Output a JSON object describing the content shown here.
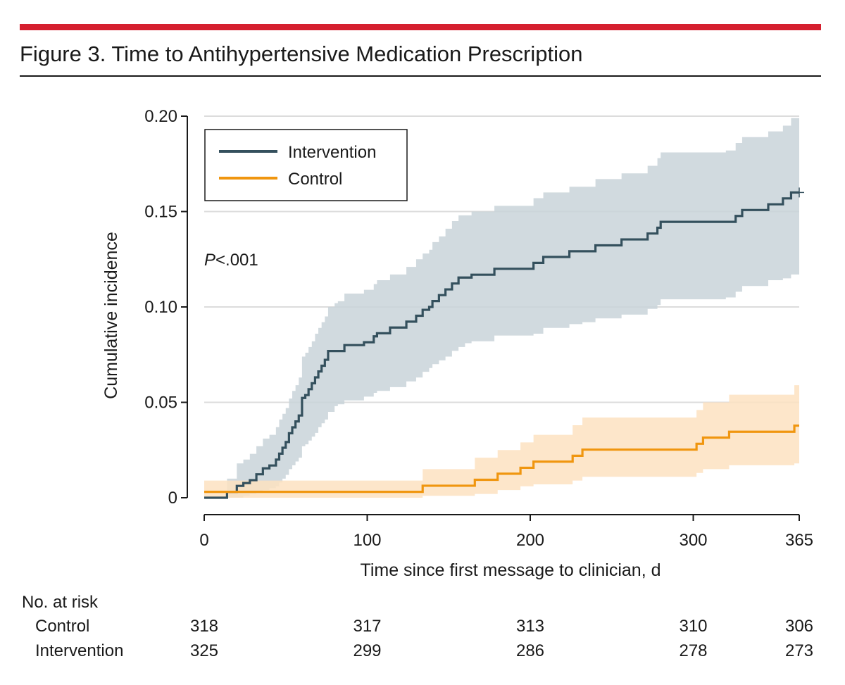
{
  "figure": {
    "title": "Figure 3. Time to Antihypertensive Medication Prescription",
    "accent_color": "#d51f2f"
  },
  "chart_data": {
    "type": "line",
    "subtype": "cumulative-incidence-step",
    "title": "Figure 3. Time to Antihypertensive Medication Prescription",
    "xlabel": "Time since first message to clinician, d",
    "ylabel": "Cumulative incidence",
    "xlim": [
      0,
      365
    ],
    "ylim": [
      0,
      0.2
    ],
    "x_ticks": [
      0,
      100,
      200,
      300,
      365
    ],
    "x_tick_labels": [
      "0",
      "100",
      "200",
      "300",
      "365"
    ],
    "y_ticks": [
      0,
      0.05,
      0.1,
      0.15,
      0.2
    ],
    "y_tick_labels": [
      "0",
      "0.05",
      "0.10",
      "0.15",
      "0.20"
    ],
    "grid": "horizontal",
    "legend_position": "top-left",
    "annotation": {
      "italic": "P",
      "text": "<.001"
    },
    "series": [
      {
        "name": "Intervention",
        "color": "#34505d",
        "band_color": "#c9d3d9",
        "x": [
          0,
          14,
          20,
          24,
          28,
          32,
          36,
          40,
          44,
          46,
          48,
          50,
          52,
          54,
          56,
          58,
          60,
          62,
          64,
          66,
          68,
          70,
          72,
          74,
          76,
          78,
          80,
          82,
          84,
          86,
          94,
          98,
          104,
          106,
          108,
          110,
          114,
          116,
          118,
          124,
          130,
          134,
          138,
          140,
          144,
          148,
          152,
          156,
          160,
          164,
          168,
          172,
          178,
          182,
          186,
          190,
          196,
          202,
          208,
          216,
          224,
          232,
          240,
          248,
          256,
          264,
          272,
          278,
          280,
          284,
          292,
          300,
          310,
          320,
          326,
          330,
          340,
          346,
          350,
          355,
          360,
          365
        ],
        "y": [
          0,
          0.0031,
          0.0062,
          0.0077,
          0.0092,
          0.0123,
          0.0154,
          0.0169,
          0.02,
          0.0231,
          0.0262,
          0.0292,
          0.0338,
          0.0369,
          0.04,
          0.0431,
          0.0523,
          0.0538,
          0.0569,
          0.06,
          0.0631,
          0.0662,
          0.0692,
          0.0723,
          0.0769,
          0.0769,
          0.0769,
          0.0769,
          0.0769,
          0.08,
          0.08,
          0.0815,
          0.0846,
          0.0862,
          0.0862,
          0.0862,
          0.0892,
          0.0892,
          0.0892,
          0.0923,
          0.0954,
          0.0985,
          0.1,
          0.1031,
          0.1062,
          0.1092,
          0.1123,
          0.1154,
          0.1154,
          0.1169,
          0.1169,
          0.1169,
          0.12,
          0.12,
          0.12,
          0.12,
          0.12,
          0.1231,
          0.1262,
          0.1262,
          0.1292,
          0.1292,
          0.1323,
          0.1323,
          0.1354,
          0.1354,
          0.1385,
          0.1415,
          0.1446,
          0.1446,
          0.1446,
          0.1446,
          0.1446,
          0.1446,
          0.1477,
          0.1508,
          0.1508,
          0.1538,
          0.1538,
          0.1569,
          0.16,
          0.16
        ],
        "lower": [
          0,
          0,
          0,
          0.001,
          0.002,
          0.003,
          0.004,
          0.005,
          0.006,
          0.008,
          0.01,
          0.012,
          0.015,
          0.017,
          0.019,
          0.021,
          0.027,
          0.028,
          0.03,
          0.032,
          0.034,
          0.037,
          0.039,
          0.041,
          0.045,
          0.045,
          0.048,
          0.049,
          0.049,
          0.051,
          0.051,
          0.053,
          0.055,
          0.056,
          0.056,
          0.056,
          0.058,
          0.058,
          0.058,
          0.061,
          0.063,
          0.066,
          0.068,
          0.07,
          0.072,
          0.074,
          0.077,
          0.079,
          0.081,
          0.082,
          0.082,
          0.082,
          0.085,
          0.085,
          0.085,
          0.085,
          0.085,
          0.086,
          0.089,
          0.089,
          0.091,
          0.092,
          0.094,
          0.094,
          0.096,
          0.096,
          0.099,
          0.101,
          0.104,
          0.104,
          0.104,
          0.104,
          0.104,
          0.105,
          0.108,
          0.111,
          0.111,
          0.114,
          0.114,
          0.115,
          0.117,
          0.117
        ],
        "upper": [
          0,
          0.01,
          0.018,
          0.02,
          0.023,
          0.027,
          0.031,
          0.033,
          0.037,
          0.041,
          0.044,
          0.047,
          0.052,
          0.056,
          0.059,
          0.063,
          0.074,
          0.076,
          0.079,
          0.082,
          0.086,
          0.089,
          0.092,
          0.095,
          0.1,
          0.1,
          0.102,
          0.103,
          0.103,
          0.107,
          0.107,
          0.109,
          0.112,
          0.114,
          0.114,
          0.114,
          0.117,
          0.117,
          0.117,
          0.121,
          0.125,
          0.128,
          0.13,
          0.134,
          0.137,
          0.141,
          0.145,
          0.148,
          0.148,
          0.15,
          0.15,
          0.15,
          0.153,
          0.153,
          0.153,
          0.153,
          0.153,
          0.157,
          0.16,
          0.16,
          0.163,
          0.163,
          0.167,
          0.167,
          0.17,
          0.17,
          0.174,
          0.178,
          0.181,
          0.181,
          0.181,
          0.181,
          0.181,
          0.182,
          0.186,
          0.189,
          0.189,
          0.192,
          0.192,
          0.195,
          0.199,
          0.199
        ]
      },
      {
        "name": "Control",
        "color": "#f0960f",
        "band_color": "#fde2c1",
        "x": [
          0,
          134,
          166,
          180,
          194,
          202,
          226,
          232,
          302,
          306,
          322,
          362,
          365
        ],
        "y": [
          0.0031,
          0.0063,
          0.0094,
          0.0126,
          0.0157,
          0.0189,
          0.022,
          0.0252,
          0.0283,
          0.0315,
          0.0346,
          0.0378,
          0.0378
        ],
        "lower": [
          0,
          0.001,
          0.002,
          0.004,
          0.006,
          0.007,
          0.009,
          0.011,
          0.013,
          0.015,
          0.017,
          0.018,
          0.018
        ],
        "upper": [
          0.009,
          0.015,
          0.021,
          0.025,
          0.029,
          0.033,
          0.038,
          0.042,
          0.046,
          0.05,
          0.054,
          0.059,
          0.059
        ]
      }
    ],
    "censor_marker": {
      "series": "Intervention",
      "x": 365,
      "y": 0.16
    },
    "risk_table": {
      "title": "No. at risk",
      "time_points": [
        0,
        100,
        200,
        300,
        365
      ],
      "rows": [
        {
          "label": "Control",
          "values": [
            "318",
            "317",
            "313",
            "310",
            "306"
          ]
        },
        {
          "label": "Intervention",
          "values": [
            "325",
            "299",
            "286",
            "278",
            "273"
          ]
        }
      ]
    }
  }
}
